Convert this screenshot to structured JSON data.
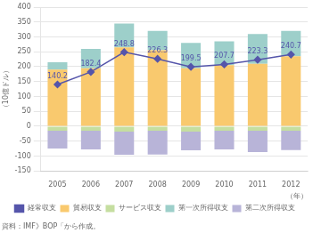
{
  "chart_data": {
    "type": "bar",
    "stacked": true,
    "categories": [
      "2005",
      "2006",
      "2007",
      "2008",
      "2009",
      "2010",
      "2011",
      "2012"
    ],
    "series": [
      {
        "name": "貿易収支",
        "type": "bar",
        "color": "#f9c96e",
        "values": [
          190,
          195,
          265,
          255,
          195,
          205,
          210,
          235
        ]
      },
      {
        "name": "サービス収支",
        "type": "bar",
        "color": "#c5dea0",
        "values": [
          -15,
          -15,
          -18,
          -15,
          -18,
          -15,
          -15,
          -15
        ]
      },
      {
        "name": "第一次所得収支",
        "type": "bar",
        "color": "#9dcfca",
        "values": [
          25,
          65,
          80,
          65,
          85,
          80,
          100,
          85
        ]
      },
      {
        "name": "第二次所得収支",
        "type": "bar",
        "color": "#b8b4d8",
        "values": [
          -60,
          -63,
          -78,
          -80,
          -63,
          -63,
          -72,
          -65
        ]
      },
      {
        "name": "経常収支",
        "type": "line",
        "color": "#5555aa",
        "marker": "diamond",
        "data_labels": true,
        "values": [
          140.2,
          182.4,
          248.8,
          226.3,
          199.5,
          207.7,
          223.3,
          240.7
        ]
      }
    ],
    "ylabel": "（10億ドル）",
    "xlabel": "（年）",
    "annotations": [
      "資料：IMF》BOP「から作成。"
    ],
    "ylim": [
      -150,
      400
    ],
    "yticks": [
      -150,
      -100,
      -50,
      0,
      50,
      100,
      150,
      200,
      250,
      300,
      350,
      400
    ],
    "grid": true,
    "legend": "bottom"
  }
}
